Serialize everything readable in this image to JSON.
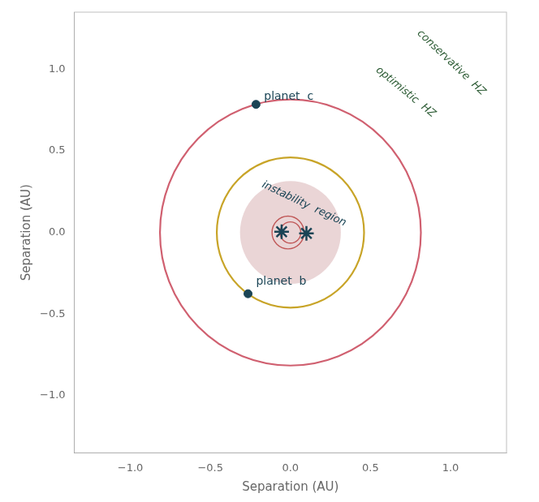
{
  "chart_data": {
    "type": "scatter",
    "xlabel": "Separation (AU)",
    "ylabel": "Separation (AU)",
    "xlim": [
      -1.35,
      1.35
    ],
    "ylim": [
      -1.35,
      1.35
    ],
    "xticks": [
      {
        "value": -1.0,
        "label": "−1.0"
      },
      {
        "value": -0.5,
        "label": "−0.5"
      },
      {
        "value": 0.0,
        "label": "0.0"
      },
      {
        "value": 0.5,
        "label": "0.5"
      },
      {
        "value": 1.0,
        "label": "1.0"
      }
    ],
    "yticks": [
      {
        "value": -1.0,
        "label": "−1.0"
      },
      {
        "value": -0.5,
        "label": "−0.5"
      },
      {
        "value": 0.0,
        "label": "0.0"
      },
      {
        "value": 0.5,
        "label": "0.5"
      },
      {
        "value": 1.0,
        "label": "1.0"
      }
    ],
    "grid": false,
    "series": [
      {
        "marker": "star",
        "color": "#1a4455",
        "x": [
          -0.055,
          0.1
        ],
        "y": [
          0.005,
          -0.005
        ]
      },
      {
        "marker": "circle",
        "color": "#1a4455",
        "x": [
          -0.265,
          -0.215
        ],
        "y": [
          -0.375,
          0.785
        ]
      }
    ],
    "circles": [
      {
        "center": [
          0,
          0
        ],
        "radius": 0.315,
        "color": "#e8d0d2",
        "type": "area"
      },
      {
        "center": [
          0,
          0
        ],
        "radius": 0.065,
        "color": "#c05858",
        "type": "line"
      },
      {
        "center": [
          -0.015,
          0
        ],
        "radius": 0.1,
        "color": "#c05858",
        "type": "line"
      },
      {
        "center": [
          0,
          0
        ],
        "radius": 0.46,
        "color": "#c8a428",
        "type": "line"
      },
      {
        "center": [
          0,
          0
        ],
        "radius": 0.815,
        "color": "#d06070",
        "type": "line"
      }
    ],
    "point_labels": [
      {
        "text": "planet  b",
        "x": -0.215,
        "y": -0.335,
        "color": "#1a4455"
      },
      {
        "text": "planet  c",
        "x": -0.165,
        "y": 0.795,
        "color": "#1a4455"
      }
    ],
    "arc_labels": [
      {
        "text": "instability  region",
        "x": 0.085,
        "y": 0.175,
        "color": "#1a4455"
      },
      {
        "text": "optimistic  HZ",
        "x": 0.72,
        "y": 0.86,
        "color": "#2d5c35"
      },
      {
        "text": "conservative  HZ",
        "x": 1.005,
        "y": 1.04,
        "color": "#2d5c35"
      }
    ]
  }
}
